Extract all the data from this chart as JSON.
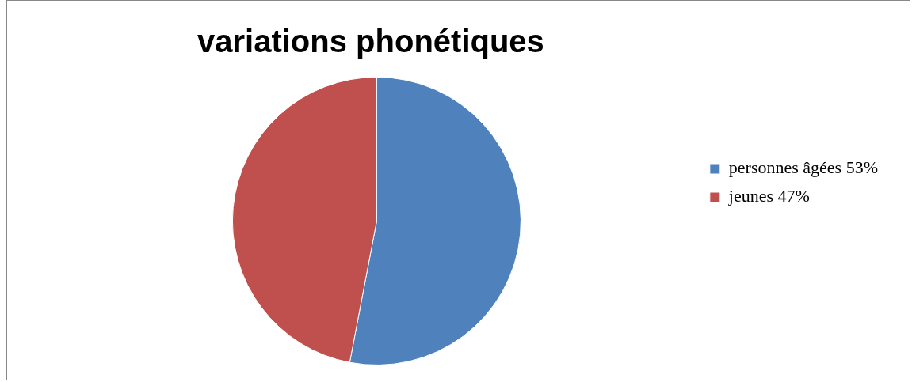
{
  "chart_data": {
    "type": "pie",
    "title": "variations phonétiques",
    "categories": [
      "personnes âgées 53%",
      "jeunes 47%"
    ],
    "values": [
      53,
      47
    ],
    "colors": [
      "#4f81bd",
      "#c0504d"
    ],
    "legend": "right"
  }
}
